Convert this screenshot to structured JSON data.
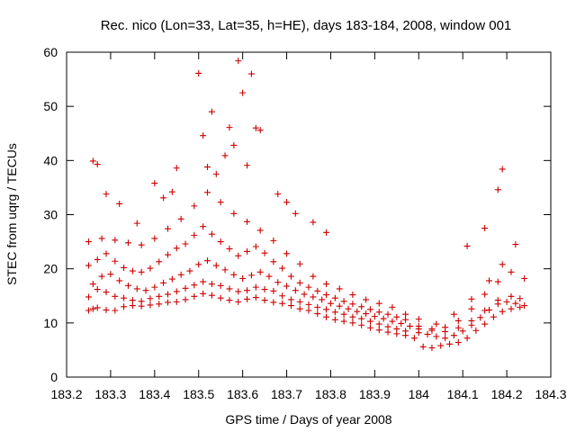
{
  "chart_data": {
    "type": "scatter",
    "title": "Rec. nico (Lon=33, Lat=35, h=HE), days 183-184, 2008, window 001",
    "xlabel": "GPS time / Days of year 2008",
    "ylabel": "STEC from uqrg / TECUs",
    "xlim": [
      183.2,
      184.3
    ],
    "ylim": [
      0,
      60
    ],
    "xticks": [
      "183.2",
      "183.3",
      "183.4",
      "183.5",
      "183.6",
      "183.7",
      "183.8",
      "183.9",
      "184",
      "184.1",
      "184.2",
      "184.3"
    ],
    "yticks": [
      "0",
      "10",
      "20",
      "30",
      "40",
      "50",
      "60"
    ],
    "grid": false,
    "legend": "none",
    "marker": "plus",
    "color": "#cc0000",
    "series": [
      {
        "x": [
          183.25,
          183.26,
          183.27,
          183.29,
          183.31,
          183.33,
          183.35,
          183.37,
          183.39,
          183.41,
          183.43,
          183.45,
          183.47,
          183.49,
          183.51,
          183.53,
          183.55,
          183.57,
          183.59,
          183.61,
          183.63,
          183.65,
          183.67,
          183.69,
          183.71,
          183.73,
          183.75,
          183.77,
          183.79,
          183.81,
          183.83,
          183.85,
          183.87,
          183.89,
          183.91,
          183.93,
          183.95,
          183.97,
          183.99,
          184.01,
          184.03,
          184.05,
          184.07,
          184.09,
          184.11,
          184.13,
          184.15,
          184.17,
          184.19,
          184.21,
          184.23
        ],
        "y": [
          12.3,
          12.6,
          12.8,
          12.4,
          12.3,
          13.0,
          13.2,
          13.1,
          13.3,
          13.5,
          13.8,
          13.9,
          14.3,
          14.9,
          15.4,
          15.1,
          14.6,
          14.2,
          13.9,
          14.4,
          14.7,
          14.2,
          13.8,
          13.6,
          13.2,
          12.6,
          12.3,
          11.7,
          11.1,
          10.6,
          10.3,
          10.0,
          9.6,
          9.1,
          8.7,
          8.3,
          8.0,
          7.7,
          7.2,
          5.6,
          5.4,
          5.8,
          6.1,
          6.4,
          7.2,
          8.6,
          9.8,
          11.1,
          12.1,
          12.6,
          12.9
        ]
      },
      {
        "x": [
          183.25,
          183.27,
          183.29,
          183.31,
          183.33,
          183.35,
          183.37,
          183.39,
          183.41,
          183.43,
          183.45,
          183.47,
          183.49,
          183.51,
          183.53,
          183.55,
          183.57,
          183.59,
          183.61,
          183.63,
          183.65,
          183.67,
          183.69,
          183.71,
          183.73,
          183.75,
          183.77,
          183.79,
          183.81,
          183.83,
          183.85,
          183.87,
          183.89,
          183.91,
          183.93,
          183.95,
          183.97,
          184.0,
          184.02,
          184.04,
          184.06,
          184.08,
          184.1,
          184.12,
          184.14,
          184.16,
          184.18,
          184.2,
          184.22,
          184.24
        ],
        "y": [
          14.8,
          16.2,
          15.7,
          14.9,
          14.6,
          14.2,
          14.0,
          14.5,
          14.9,
          15.3,
          15.8,
          16.4,
          17.0,
          17.6,
          17.2,
          16.9,
          16.3,
          15.8,
          16.0,
          16.6,
          16.2,
          15.9,
          15.0,
          14.3,
          13.9,
          13.4,
          12.9,
          12.5,
          12.0,
          11.6,
          11.1,
          10.8,
          10.3,
          9.8,
          9.3,
          8.9,
          8.5,
          8.2,
          7.9,
          7.5,
          7.2,
          7.7,
          8.5,
          9.6,
          11.0,
          12.4,
          13.5,
          13.9,
          13.6,
          13.2
        ]
      },
      {
        "x": [
          183.26,
          183.28,
          183.3,
          183.32,
          183.34,
          183.36,
          183.38,
          183.4,
          183.42,
          183.44,
          183.46,
          183.48,
          183.5,
          183.52,
          183.54,
          183.56,
          183.58,
          183.6,
          183.62,
          183.64,
          183.66,
          183.68,
          183.7,
          183.72,
          183.74,
          183.76,
          183.78,
          183.8,
          183.82,
          183.84,
          183.86,
          183.88,
          183.9,
          183.92,
          183.94,
          183.96,
          183.98,
          184.0,
          184.03,
          184.06,
          184.09,
          184.12,
          184.15,
          184.18,
          184.21,
          184.23
        ],
        "y": [
          17.2,
          18.6,
          19.0,
          17.8,
          16.9,
          16.3,
          16.0,
          16.6,
          17.4,
          18.1,
          18.9,
          19.6,
          20.8,
          21.5,
          20.6,
          19.8,
          18.9,
          18.2,
          18.8,
          19.4,
          18.6,
          17.5,
          16.8,
          16.0,
          15.3,
          14.8,
          14.3,
          13.6,
          13.1,
          12.6,
          12.1,
          11.7,
          11.2,
          10.8,
          10.3,
          9.9,
          9.4,
          8.9,
          8.6,
          8.4,
          9.1,
          10.4,
          12.3,
          14.2,
          14.9,
          14.5
        ]
      },
      {
        "x": [
          183.25,
          183.27,
          183.29,
          183.31,
          183.33,
          183.35,
          183.37,
          183.39,
          183.41,
          183.43,
          183.45,
          183.47,
          183.49,
          183.51,
          183.53,
          183.55,
          183.57,
          183.59,
          183.61,
          183.63,
          183.65,
          183.67,
          183.69,
          183.71,
          183.73,
          183.75,
          183.77,
          183.79,
          183.81,
          183.83,
          183.85,
          183.87,
          183.89,
          183.91,
          183.93,
          183.95,
          183.97,
          184.0,
          184.03,
          184.06,
          184.09,
          184.12,
          184.15,
          184.18,
          184.21,
          184.24
        ],
        "y": [
          20.6,
          21.7,
          22.8,
          21.4,
          20.2,
          19.6,
          19.4,
          20.1,
          21.3,
          22.6,
          23.8,
          24.6,
          26.2,
          27.8,
          26.4,
          25.0,
          23.7,
          22.4,
          23.2,
          24.1,
          22.9,
          21.3,
          20.1,
          18.6,
          17.4,
          16.6,
          15.9,
          15.2,
          14.6,
          14.0,
          13.5,
          13.0,
          12.5,
          12.0,
          11.6,
          11.1,
          10.6,
          9.4,
          8.9,
          9.2,
          10.4,
          12.6,
          15.3,
          17.6,
          19.4,
          18.2
        ]
      },
      {
        "x": [
          183.25,
          183.28,
          183.31,
          183.34,
          183.37,
          183.4,
          183.43,
          183.46,
          183.49,
          183.52,
          183.55,
          183.58,
          183.61,
          183.64,
          183.67,
          183.7,
          183.73,
          183.76,
          183.79,
          183.82,
          183.85,
          183.88,
          183.91,
          183.94,
          183.97,
          184.0,
          184.04,
          184.08,
          184.12,
          184.16,
          184.19,
          184.22
        ],
        "y": [
          25.0,
          25.6,
          25.3,
          24.8,
          24.4,
          25.6,
          27.4,
          29.2,
          31.6,
          34.1,
          32.3,
          30.2,
          28.7,
          27.1,
          25.2,
          22.8,
          20.9,
          18.6,
          17.2,
          16.3,
          15.2,
          14.3,
          13.6,
          12.9,
          11.6,
          10.7,
          9.8,
          11.6,
          14.4,
          17.8,
          20.8,
          24.5
        ]
      },
      {
        "x": [
          183.26,
          183.27,
          183.29,
          183.32,
          183.36,
          183.4,
          183.42,
          183.44,
          183.45,
          183.5,
          183.51,
          183.52,
          183.53,
          183.54,
          183.56,
          183.57,
          183.58,
          183.59,
          183.6,
          183.61,
          183.62,
          183.63,
          183.64,
          183.68,
          183.7,
          183.72,
          183.76,
          183.79,
          184.11,
          184.15,
          184.18,
          184.19
        ],
        "y": [
          39.9,
          39.3,
          33.8,
          32.0,
          28.4,
          35.8,
          33.1,
          34.2,
          38.6,
          56.1,
          44.6,
          38.8,
          49.0,
          37.5,
          40.9,
          46.1,
          42.8,
          58.4,
          52.5,
          39.1,
          56.0,
          46.0,
          45.6,
          33.8,
          32.3,
          30.2,
          28.6,
          26.7,
          24.2,
          27.5,
          34.6,
          38.4
        ]
      }
    ]
  }
}
